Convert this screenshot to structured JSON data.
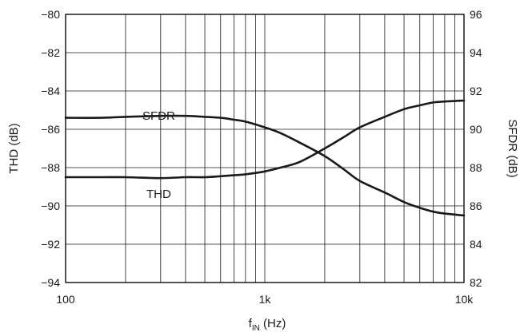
{
  "chart_data": {
    "type": "line",
    "title": "",
    "xlabel": {
      "main": "f",
      "sub": "IN",
      "unit": " (Hz)"
    },
    "ylabel_left": "THD (dB)",
    "ylabel_right": "SFDR (dB)",
    "x_scale": "log",
    "xlim": [
      100,
      10000
    ],
    "ylim_left": [
      -94,
      -80
    ],
    "ylim_right": [
      82,
      96
    ],
    "grid": true,
    "x_ticks": [
      {
        "value": 100,
        "label": "100"
      },
      {
        "value": 1000,
        "label": "1k"
      },
      {
        "value": 10000,
        "label": "10k"
      }
    ],
    "y_ticks_left": [
      {
        "value": -80,
        "label": "−80"
      },
      {
        "value": -82,
        "label": "−82"
      },
      {
        "value": -84,
        "label": "−84"
      },
      {
        "value": -86,
        "label": "−86"
      },
      {
        "value": -88,
        "label": "−88"
      },
      {
        "value": -90,
        "label": "−90"
      },
      {
        "value": -92,
        "label": "−92"
      },
      {
        "value": -94,
        "label": "−94"
      }
    ],
    "y_ticks_right": [
      {
        "value": 96,
        "label": "96"
      },
      {
        "value": 94,
        "label": "94"
      },
      {
        "value": 92,
        "label": "92"
      },
      {
        "value": 90,
        "label": "90"
      },
      {
        "value": 88,
        "label": "88"
      },
      {
        "value": 86,
        "label": "86"
      },
      {
        "value": 84,
        "label": "84"
      },
      {
        "value": 82,
        "label": "82"
      }
    ],
    "series": [
      {
        "name": "SFDR",
        "axis": "right",
        "x": [
          100,
          150,
          200,
          300,
          400,
          500,
          600,
          700,
          800,
          1000,
          1200,
          1500,
          2000,
          2500,
          3000,
          4000,
          5000,
          6000,
          7000,
          8000,
          10000
        ],
        "y": [
          90.6,
          90.6,
          90.65,
          90.7,
          90.7,
          90.65,
          90.6,
          90.5,
          90.4,
          90.1,
          89.8,
          89.3,
          88.6,
          87.9,
          87.3,
          86.7,
          86.2,
          85.9,
          85.7,
          85.6,
          85.5
        ]
      },
      {
        "name": "THD",
        "axis": "left",
        "x": [
          100,
          150,
          200,
          300,
          400,
          500,
          600,
          700,
          800,
          1000,
          1200,
          1500,
          2000,
          2500,
          3000,
          4000,
          5000,
          6000,
          7000,
          8000,
          10000
        ],
        "y": [
          -88.5,
          -88.5,
          -88.5,
          -88.55,
          -88.5,
          -88.5,
          -88.45,
          -88.4,
          -88.35,
          -88.2,
          -88.0,
          -87.7,
          -87.0,
          -86.4,
          -85.9,
          -85.35,
          -84.95,
          -84.75,
          -84.6,
          -84.55,
          -84.5
        ]
      }
    ]
  }
}
